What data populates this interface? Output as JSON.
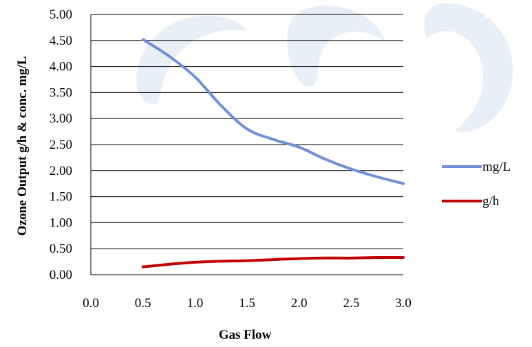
{
  "chart_data": {
    "type": "line",
    "title": "",
    "xlabel": "Gas Flow",
    "ylabel": "Ozone Output g/h & conc. mg/L",
    "xlim": [
      0,
      3
    ],
    "ylim": [
      0,
      5
    ],
    "x_ticks": [
      "0.0",
      "0.5",
      "1.0",
      "1.5",
      "2.0",
      "2.5",
      "3.0"
    ],
    "y_ticks": [
      "0.00",
      "0.50",
      "1.00",
      "1.50",
      "2.00",
      "2.50",
      "3.00",
      "3.50",
      "4.00",
      "4.50",
      "5.00"
    ],
    "grid": "horizontal",
    "legend_position": "right",
    "series": [
      {
        "name": "mg/L",
        "color": "#6f8fd6",
        "x": [
          0.5,
          0.75,
          1.0,
          1.25,
          1.5,
          1.75,
          2.0,
          2.25,
          2.5,
          2.75,
          3.0
        ],
        "y": [
          4.52,
          4.2,
          3.8,
          3.25,
          2.8,
          2.6,
          2.45,
          2.22,
          2.03,
          1.88,
          1.75
        ]
      },
      {
        "name": "g/h",
        "color": "#c00000",
        "x": [
          0.5,
          0.75,
          1.0,
          1.25,
          1.5,
          1.75,
          2.0,
          2.25,
          2.5,
          2.75,
          3.0
        ],
        "y": [
          0.15,
          0.2,
          0.24,
          0.26,
          0.27,
          0.29,
          0.31,
          0.32,
          0.32,
          0.33,
          0.33
        ]
      }
    ]
  },
  "watermark": {
    "color": "#e9eff6",
    "text": ""
  }
}
